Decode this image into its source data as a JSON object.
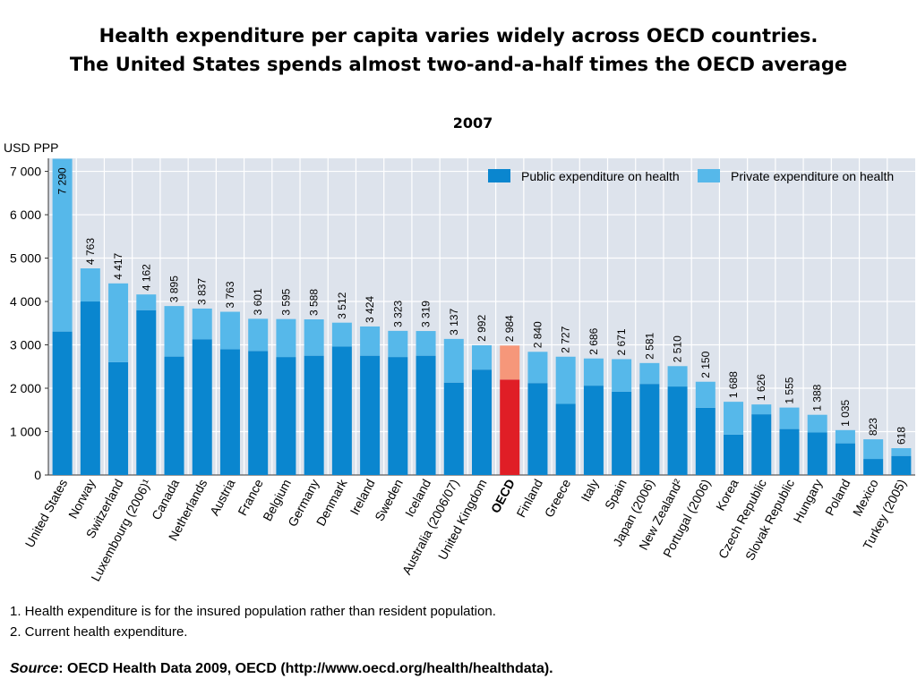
{
  "title_line1": "Health expenditure per capita varies widely across OECD countries.",
  "title_line2": "The United States spends almost two-and-a-half times the OECD average",
  "footnotes": [
    "1. Health expenditure is for the insured population rather than resident population.",
    "2. Current health expenditure."
  ],
  "source": {
    "label": "Source",
    "text": ": OECD Health Data 2009, OECD (http://www.oecd.org/health/healthdata)."
  },
  "chart_data": {
    "type": "bar",
    "stacked": true,
    "subtitle": "2007",
    "ylabel": "USD PPP",
    "ylim": [
      0,
      7300
    ],
    "yticks": [
      0,
      1000,
      2000,
      3000,
      4000,
      5000,
      6000,
      7000
    ],
    "ytick_labels": [
      "0",
      "1 000",
      "2 000",
      "3 000",
      "4 000",
      "5 000",
      "6 000",
      "7 000"
    ],
    "grid": true,
    "legend_position": "top-right",
    "categories": [
      "United States",
      "Norway",
      "Switzerland",
      "Luxembourg (2006)¹",
      "Canada",
      "Netherlands",
      "Austria",
      "France",
      "Belgium",
      "Germany",
      "Denmark",
      "Ireland",
      "Sweden",
      "Iceland",
      "Australia (2006/07)",
      "United Kingdom",
      "OECD",
      "Finland",
      "Greece",
      "Italy",
      "Spain",
      "Japan (2006)",
      "New Zealand²",
      "Portugal (2006)",
      "Korea",
      "Czech Republic",
      "Slovak Republic",
      "Hungary",
      "Poland",
      "Mexico",
      "Turkey (2005)"
    ],
    "highlight_category": "OECD",
    "total_labels": [
      "7 290",
      "4 763",
      "4 417",
      "4 162",
      "3 895",
      "3 837",
      "3 763",
      "3 601",
      "3 595",
      "3 588",
      "3 512",
      "3 424",
      "3 323",
      "3 319",
      "3 137",
      "2 992",
      "2 984",
      "2 840",
      "2 727",
      "2 686",
      "2 671",
      "2 581",
      "2 510",
      "2 150",
      "1 688",
      "1 626",
      "1 555",
      "1 388",
      "1 035",
      "823",
      "618"
    ],
    "series": [
      {
        "name": "Public expenditure on health",
        "color": "#0a86cf",
        "highlight_color": "#e01e26",
        "values": [
          3307,
          4000,
          2600,
          3800,
          2730,
          3130,
          2900,
          2860,
          2720,
          2750,
          2960,
          2750,
          2720,
          2750,
          2130,
          2430,
          2200,
          2120,
          1640,
          2060,
          1920,
          2100,
          2040,
          1550,
          930,
          1400,
          1060,
          980,
          730,
          370,
          440
        ]
      },
      {
        "name": "Private expenditure on health",
        "color": "#56b8ea",
        "highlight_color": "#f6977a",
        "values": [
          3983,
          763,
          1817,
          362,
          1165,
          707,
          863,
          741,
          875,
          838,
          552,
          674,
          603,
          569,
          1007,
          562,
          784,
          720,
          1087,
          626,
          751,
          481,
          470,
          600,
          758,
          226,
          495,
          408,
          305,
          453,
          178
        ]
      }
    ]
  }
}
